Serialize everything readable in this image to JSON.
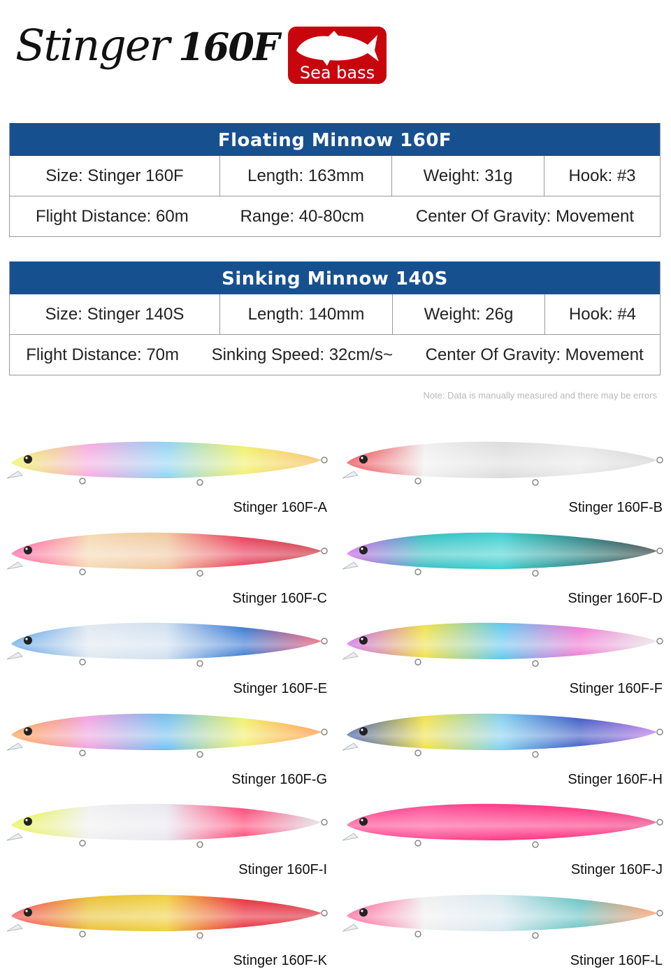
{
  "logo": {
    "script_text": "Stinger",
    "model": "160F"
  },
  "badge": {
    "label": "Sea bass",
    "icon": "fish-icon",
    "color": "#c8050d"
  },
  "header_color": "#17508f",
  "tables": [
    {
      "title": "Floating Minnow 160F",
      "row1": [
        "Size: Stinger 160F",
        "Length: 163mm",
        "Weight: 31g",
        "Hook: #3"
      ],
      "row2": [
        "Flight Distance: 60m",
        "Range: 40-80cm",
        "Center Of Gravity: Movement"
      ]
    },
    {
      "title": "Sinking Minnow 140S",
      "row1": [
        "Size: Stinger 140S",
        "Length: 140mm",
        "Weight: 26g",
        "Hook: #4"
      ],
      "row2": [
        "Flight Distance: 70m",
        "Sinking Speed: 32cm/s~",
        "Center Of Gravity: Movement"
      ]
    }
  ],
  "note": "Note: Data is manually measured and there may be errors",
  "lures": [
    {
      "label": "Stinger 160F-A",
      "colors": [
        "#e8f03a",
        "#f7a8e0",
        "#8fd4f5",
        "#f0f060",
        "#f5b040"
      ]
    },
    {
      "label": "Stinger 160F-B",
      "colors": [
        "#e8121c",
        "#f0f0f0",
        "#dcdcdc",
        "#e8e8e8",
        "#cccccc"
      ]
    },
    {
      "label": "Stinger 160F-C",
      "colors": [
        "#ff3a8c",
        "#f5d8b0",
        "#f0c8a0",
        "#e83050",
        "#c0101c"
      ]
    },
    {
      "label": "Stinger 160F-D",
      "colors": [
        "#c040e0",
        "#30c0c0",
        "#40d0d0",
        "#208080",
        "#102020"
      ]
    },
    {
      "label": "Stinger 160F-E",
      "colors": [
        "#3a8ee0",
        "#e0e8f0",
        "#d0e0f0",
        "#2a70d0",
        "#e83050"
      ]
    },
    {
      "label": "Stinger 160F-F",
      "colors": [
        "#c040e0",
        "#f0e040",
        "#60c8f0",
        "#f070d0",
        "#e0e0e0"
      ]
    },
    {
      "label": "Stinger 160F-G",
      "colors": [
        "#ff8a20",
        "#f0a0e0",
        "#70c0f0",
        "#f0f060",
        "#ff8020"
      ]
    },
    {
      "label": "Stinger 160F-H",
      "colors": [
        "#1a3a9a",
        "#f0e040",
        "#80d0f0",
        "#3050c0",
        "#b060e0"
      ]
    },
    {
      "label": "Stinger 160F-I",
      "colors": [
        "#e0f020",
        "#f0f0f0",
        "#e8e8f0",
        "#ff3a6c",
        "#d8d8e0"
      ]
    },
    {
      "label": "Stinger 160F-J",
      "colors": [
        "#ff2a7c",
        "#ff4a94",
        "#ff3a88",
        "#ff2a7c",
        "#e81c6c"
      ]
    },
    {
      "label": "Stinger 160F-K",
      "colors": [
        "#f02030",
        "#e8c030",
        "#f0d040",
        "#e82030",
        "#d01020"
      ]
    },
    {
      "label": "Stinger 160F-L",
      "colors": [
        "#ff3a7c",
        "#f0f0f0",
        "#d8e8f0",
        "#60c0c0",
        "#ff8040"
      ]
    }
  ]
}
